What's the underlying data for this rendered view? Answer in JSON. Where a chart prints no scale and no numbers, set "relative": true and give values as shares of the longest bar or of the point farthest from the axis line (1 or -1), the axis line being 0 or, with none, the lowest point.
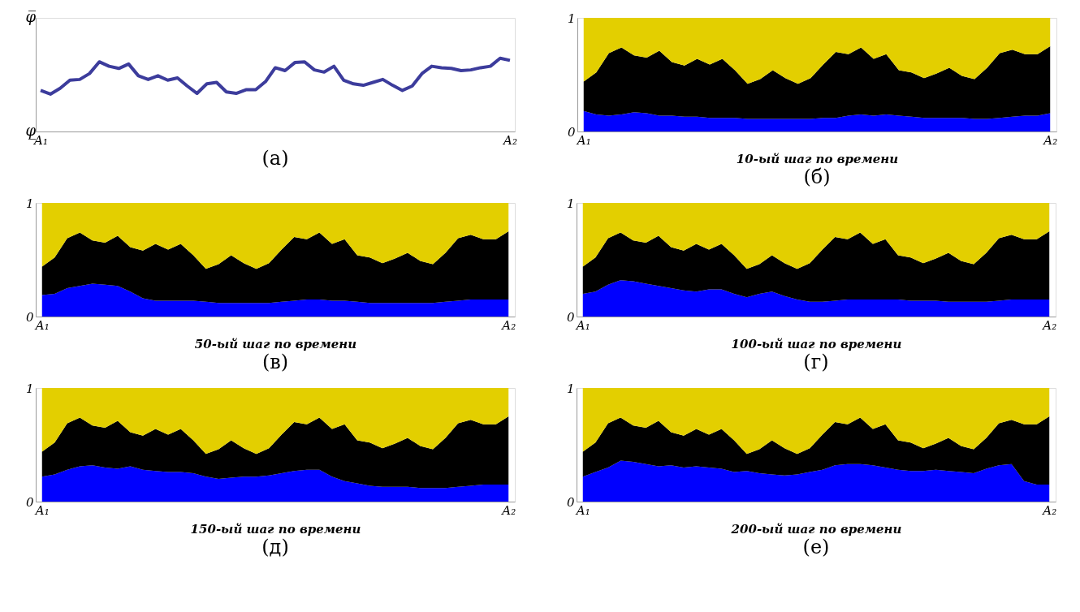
{
  "chart_data": [
    {
      "type": "line",
      "relative": true,
      "color": "#3c3c9c",
      "line_style": "solid",
      "annotations": [
        "(а)",
        "φ̅",
        "φ̲"
      ],
      "categories": [
        "A₁",
        null,
        null,
        null,
        null,
        null,
        null,
        null,
        null,
        null,
        null,
        null,
        null,
        null,
        null,
        null,
        null,
        null,
        null,
        null,
        null,
        null,
        null,
        null,
        null,
        null,
        null,
        null,
        null,
        null,
        null,
        null,
        null,
        null,
        null,
        null,
        null,
        null,
        null,
        null,
        null,
        null,
        null,
        null,
        null,
        null,
        null,
        null,
        "A₂"
      ],
      "values": [
        0.56,
        0.51,
        0.59,
        0.7,
        0.71,
        0.79,
        0.95,
        0.89,
        0.86,
        0.92,
        0.76,
        0.71,
        0.76,
        0.7,
        0.73,
        0.62,
        0.52,
        0.65,
        0.67,
        0.54,
        0.52,
        0.57,
        0.57,
        0.68,
        0.87,
        0.83,
        0.94,
        0.95,
        0.84,
        0.81,
        0.89,
        0.7,
        0.65,
        0.63,
        0.67,
        0.71,
        0.63,
        0.56,
        0.62,
        0.79,
        0.89,
        0.87,
        0.86,
        0.83,
        0.84,
        0.87,
        0.89,
        1,
        0.97
      ]
    },
    {
      "type": "area",
      "stacked": true,
      "xlabel": "10-ый шаг по времени",
      "annotations": [
        "(б)"
      ],
      "categories": [
        "A₁",
        null,
        null,
        null,
        null,
        null,
        null,
        null,
        null,
        null,
        null,
        null,
        null,
        null,
        null,
        null,
        null,
        null,
        null,
        null,
        null,
        null,
        null,
        null,
        null,
        null,
        null,
        null,
        null,
        null,
        null,
        null,
        null,
        null,
        null,
        null,
        null,
        "A₂"
      ],
      "series": [
        {
          "color": "#0000ff",
          "values": [
            0.18,
            0.15,
            0.14,
            0.15,
            0.17,
            0.16,
            0.14,
            0.14,
            0.13,
            0.13,
            0.12,
            0.12,
            0.12,
            0.11,
            0.11,
            0.11,
            0.11,
            0.11,
            0.11,
            0.12,
            0.12,
            0.14,
            0.15,
            0.14,
            0.15,
            0.14,
            0.13,
            0.12,
            0.12,
            0.12,
            0.12,
            0.11,
            0.11,
            0.12,
            0.13,
            0.14,
            0.14,
            0.16
          ]
        },
        {
          "color": "#000000",
          "values": [
            0.26,
            0.37,
            0.55,
            0.59,
            0.5,
            0.49,
            0.57,
            0.47,
            0.45,
            0.51,
            0.47,
            0.52,
            0.42,
            0.31,
            0.35,
            0.43,
            0.36,
            0.31,
            0.36,
            0.47,
            0.58,
            0.54,
            0.59,
            0.5,
            0.53,
            0.4,
            0.39,
            0.35,
            0.39,
            0.44,
            0.37,
            0.35,
            0.45,
            0.57,
            0.59,
            0.54,
            0.54,
            0.59
          ]
        },
        {
          "color": "#e3cf00",
          "values": [
            0.56,
            0.48,
            0.31,
            0.26,
            0.33,
            0.35,
            0.29,
            0.39,
            0.42,
            0.36,
            0.41,
            0.36,
            0.46,
            0.58,
            0.54,
            0.46,
            0.53,
            0.58,
            0.53,
            0.41,
            0.3,
            0.32,
            0.26,
            0.36,
            0.32,
            0.46,
            0.48,
            0.53,
            0.49,
            0.44,
            0.51,
            0.54,
            0.44,
            0.31,
            0.28,
            0.32,
            0.32,
            0.25
          ]
        }
      ],
      "ylim": [
        0,
        1
      ],
      "yticks": [
        0,
        1
      ]
    },
    {
      "type": "area",
      "stacked": true,
      "xlabel": "50-ый шаг по времени",
      "annotations": [
        "(в)"
      ],
      "categories": [
        "A₁",
        null,
        null,
        null,
        null,
        null,
        null,
        null,
        null,
        null,
        null,
        null,
        null,
        null,
        null,
        null,
        null,
        null,
        null,
        null,
        null,
        null,
        null,
        null,
        null,
        null,
        null,
        null,
        null,
        null,
        null,
        null,
        null,
        null,
        null,
        null,
        null,
        "A₂"
      ],
      "series": [
        {
          "color": "#0000ff",
          "values": [
            0.19,
            0.2,
            0.25,
            0.27,
            0.29,
            0.28,
            0.27,
            0.22,
            0.16,
            0.14,
            0.14,
            0.14,
            0.14,
            0.13,
            0.12,
            0.12,
            0.12,
            0.12,
            0.12,
            0.13,
            0.14,
            0.15,
            0.15,
            0.14,
            0.14,
            0.13,
            0.12,
            0.12,
            0.12,
            0.12,
            0.12,
            0.12,
            0.13,
            0.14,
            0.15,
            0.15,
            0.15,
            0.15
          ]
        },
        {
          "color": "#000000",
          "values": [
            0.25,
            0.32,
            0.44,
            0.47,
            0.38,
            0.37,
            0.44,
            0.39,
            0.42,
            0.5,
            0.45,
            0.5,
            0.4,
            0.29,
            0.34,
            0.42,
            0.35,
            0.3,
            0.35,
            0.46,
            0.56,
            0.53,
            0.59,
            0.5,
            0.54,
            0.41,
            0.4,
            0.35,
            0.39,
            0.44,
            0.37,
            0.34,
            0.43,
            0.55,
            0.57,
            0.53,
            0.53,
            0.6
          ]
        },
        {
          "color": "#e3cf00",
          "values": [
            0.56,
            0.48,
            0.31,
            0.26,
            0.33,
            0.35,
            0.29,
            0.39,
            0.42,
            0.36,
            0.41,
            0.36,
            0.46,
            0.58,
            0.54,
            0.46,
            0.53,
            0.58,
            0.53,
            0.41,
            0.3,
            0.32,
            0.26,
            0.36,
            0.32,
            0.46,
            0.48,
            0.53,
            0.49,
            0.44,
            0.51,
            0.54,
            0.44,
            0.31,
            0.28,
            0.32,
            0.32,
            0.25
          ]
        }
      ],
      "ylim": [
        0,
        1
      ],
      "yticks": [
        0,
        1
      ]
    },
    {
      "type": "area",
      "stacked": true,
      "xlabel": "100-ый шаг по времени",
      "annotations": [
        "(г)"
      ],
      "categories": [
        "A₁",
        null,
        null,
        null,
        null,
        null,
        null,
        null,
        null,
        null,
        null,
        null,
        null,
        null,
        null,
        null,
        null,
        null,
        null,
        null,
        null,
        null,
        null,
        null,
        null,
        null,
        null,
        null,
        null,
        null,
        null,
        null,
        null,
        null,
        null,
        null,
        null,
        "A₂"
      ],
      "series": [
        {
          "color": "#0000ff",
          "values": [
            0.2,
            0.22,
            0.28,
            0.32,
            0.31,
            0.29,
            0.27,
            0.25,
            0.23,
            0.22,
            0.24,
            0.24,
            0.2,
            0.17,
            0.2,
            0.22,
            0.18,
            0.15,
            0.13,
            0.13,
            0.14,
            0.15,
            0.15,
            0.15,
            0.15,
            0.15,
            0.14,
            0.14,
            0.14,
            0.13,
            0.13,
            0.13,
            0.13,
            0.14,
            0.15,
            0.15,
            0.15,
            0.15
          ]
        },
        {
          "color": "#000000",
          "values": [
            0.24,
            0.3,
            0.41,
            0.42,
            0.36,
            0.36,
            0.44,
            0.36,
            0.35,
            0.42,
            0.35,
            0.4,
            0.34,
            0.25,
            0.26,
            0.32,
            0.29,
            0.27,
            0.34,
            0.46,
            0.56,
            0.53,
            0.59,
            0.49,
            0.53,
            0.39,
            0.38,
            0.33,
            0.37,
            0.43,
            0.36,
            0.33,
            0.43,
            0.55,
            0.57,
            0.53,
            0.53,
            0.6
          ]
        },
        {
          "color": "#e3cf00",
          "values": [
            0.56,
            0.48,
            0.31,
            0.26,
            0.33,
            0.35,
            0.29,
            0.39,
            0.42,
            0.36,
            0.41,
            0.36,
            0.46,
            0.58,
            0.54,
            0.46,
            0.53,
            0.58,
            0.53,
            0.41,
            0.3,
            0.32,
            0.26,
            0.36,
            0.32,
            0.46,
            0.48,
            0.53,
            0.49,
            0.44,
            0.51,
            0.54,
            0.44,
            0.31,
            0.28,
            0.32,
            0.32,
            0.25
          ]
        }
      ],
      "ylim": [
        0,
        1
      ],
      "yticks": [
        0,
        1
      ]
    },
    {
      "type": "area",
      "stacked": true,
      "xlabel": "150-ый шаг по времени",
      "annotations": [
        "(д)"
      ],
      "categories": [
        "A₁",
        null,
        null,
        null,
        null,
        null,
        null,
        null,
        null,
        null,
        null,
        null,
        null,
        null,
        null,
        null,
        null,
        null,
        null,
        null,
        null,
        null,
        null,
        null,
        null,
        null,
        null,
        null,
        null,
        null,
        null,
        null,
        null,
        null,
        null,
        null,
        null,
        "A₂"
      ],
      "series": [
        {
          "color": "#0000ff",
          "values": [
            0.22,
            0.24,
            0.28,
            0.31,
            0.32,
            0.3,
            0.29,
            0.31,
            0.28,
            0.27,
            0.26,
            0.26,
            0.25,
            0.22,
            0.2,
            0.21,
            0.22,
            0.22,
            0.23,
            0.25,
            0.27,
            0.28,
            0.28,
            0.22,
            0.18,
            0.16,
            0.14,
            0.13,
            0.13,
            0.13,
            0.12,
            0.12,
            0.12,
            0.13,
            0.14,
            0.15,
            0.15,
            0.15
          ]
        },
        {
          "color": "#000000",
          "values": [
            0.22,
            0.28,
            0.41,
            0.43,
            0.35,
            0.35,
            0.42,
            0.3,
            0.3,
            0.37,
            0.33,
            0.38,
            0.29,
            0.2,
            0.26,
            0.33,
            0.25,
            0.2,
            0.24,
            0.34,
            0.43,
            0.4,
            0.46,
            0.42,
            0.5,
            0.38,
            0.38,
            0.34,
            0.38,
            0.43,
            0.37,
            0.34,
            0.44,
            0.56,
            0.58,
            0.53,
            0.53,
            0.6
          ]
        },
        {
          "color": "#e3cf00",
          "values": [
            0.56,
            0.48,
            0.31,
            0.26,
            0.33,
            0.35,
            0.29,
            0.39,
            0.42,
            0.36,
            0.41,
            0.36,
            0.46,
            0.58,
            0.54,
            0.46,
            0.53,
            0.58,
            0.53,
            0.41,
            0.3,
            0.32,
            0.26,
            0.36,
            0.32,
            0.46,
            0.48,
            0.53,
            0.49,
            0.44,
            0.51,
            0.54,
            0.44,
            0.31,
            0.28,
            0.32,
            0.32,
            0.25
          ]
        }
      ],
      "ylim": [
        0,
        1
      ],
      "yticks": [
        0,
        1
      ]
    },
    {
      "type": "area",
      "stacked": true,
      "xlabel": "200-ый шаг по времени",
      "annotations": [
        "(е)"
      ],
      "categories": [
        "A₁",
        null,
        null,
        null,
        null,
        null,
        null,
        null,
        null,
        null,
        null,
        null,
        null,
        null,
        null,
        null,
        null,
        null,
        null,
        null,
        null,
        null,
        null,
        null,
        null,
        null,
        null,
        null,
        null,
        null,
        null,
        null,
        null,
        null,
        null,
        null,
        null,
        "A₂"
      ],
      "series": [
        {
          "color": "#0000ff",
          "values": [
            0.22,
            0.26,
            0.3,
            0.36,
            0.35,
            0.33,
            0.31,
            0.32,
            0.3,
            0.31,
            0.3,
            0.29,
            0.26,
            0.27,
            0.25,
            0.24,
            0.23,
            0.24,
            0.26,
            0.28,
            0.32,
            0.33,
            0.33,
            0.32,
            0.3,
            0.28,
            0.27,
            0.27,
            0.28,
            0.27,
            0.26,
            0.25,
            0.29,
            0.32,
            0.33,
            0.18,
            0.15,
            0.15
          ]
        },
        {
          "color": "#000000",
          "values": [
            0.22,
            0.26,
            0.39,
            0.38,
            0.32,
            0.32,
            0.4,
            0.29,
            0.28,
            0.33,
            0.29,
            0.35,
            0.28,
            0.15,
            0.21,
            0.3,
            0.24,
            0.18,
            0.21,
            0.31,
            0.38,
            0.35,
            0.41,
            0.32,
            0.38,
            0.26,
            0.25,
            0.2,
            0.23,
            0.29,
            0.23,
            0.21,
            0.27,
            0.37,
            0.39,
            0.5,
            0.53,
            0.6
          ]
        },
        {
          "color": "#e3cf00",
          "values": [
            0.56,
            0.48,
            0.31,
            0.26,
            0.33,
            0.35,
            0.29,
            0.39,
            0.42,
            0.36,
            0.41,
            0.36,
            0.46,
            0.58,
            0.54,
            0.46,
            0.53,
            0.58,
            0.53,
            0.41,
            0.3,
            0.32,
            0.26,
            0.36,
            0.32,
            0.46,
            0.48,
            0.53,
            0.49,
            0.44,
            0.51,
            0.54,
            0.44,
            0.31,
            0.28,
            0.32,
            0.32,
            0.25
          ]
        }
      ],
      "ylim": [
        0,
        1
      ],
      "yticks": [
        0,
        1
      ]
    }
  ]
}
